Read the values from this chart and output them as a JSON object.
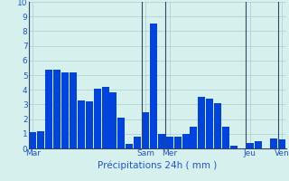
{
  "bar_values": [
    1.1,
    1.2,
    5.4,
    5.4,
    5.2,
    5.2,
    3.3,
    3.2,
    4.1,
    4.2,
    3.8,
    2.1,
    0.3,
    0.8,
    2.5,
    8.5,
    1.0,
    0.8,
    0.8,
    1.0,
    1.5,
    3.5,
    3.4,
    3.1,
    1.5,
    0.2,
    0.0,
    0.4,
    0.5,
    0.0,
    0.7,
    0.6
  ],
  "day_labels": [
    "Mar",
    "Sam",
    "Mer",
    "Jeu",
    "Ven"
  ],
  "day_positions": [
    0,
    14,
    17,
    27,
    31
  ],
  "ylabel_ticks": [
    0,
    1,
    2,
    3,
    4,
    5,
    6,
    7,
    8,
    9,
    10
  ],
  "xlabel": "Précipitations 24h ( mm )",
  "bar_color": "#0044dd",
  "bg_color": "#d6f0ee",
  "grid_color": "#aacccc",
  "vline_color": "#334466",
  "ylim": [
    0,
    10
  ],
  "xlabel_color": "#2255cc",
  "tick_color": "#2255cc",
  "label_fontsize": 6.5,
  "xlabel_fontsize": 7.5
}
